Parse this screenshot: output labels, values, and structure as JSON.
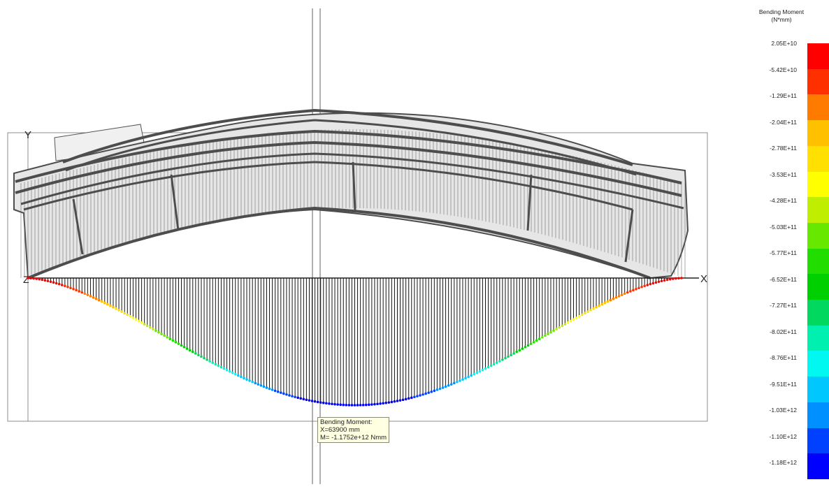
{
  "viewer": {
    "axis_labels": {
      "y": "Y",
      "x": "X",
      "z": "Z"
    }
  },
  "tooltip": {
    "title": "Bending Moment:",
    "x_line": "X=63900 mm",
    "m_line": "M= -1.1752e+12 Nmm"
  },
  "legend": {
    "title_line1": "Bending Moment",
    "title_line2": "(N*mm)",
    "values": [
      "2.05E+10",
      "-5.42E+10",
      "-1.29E+11",
      "-2.04E+11",
      "-2.78E+11",
      "-3.53E+11",
      "-4.28E+11",
      "-5.03E+11",
      "-5.77E+11",
      "-6.52E+11",
      "-7.27E+11",
      "-8.02E+11",
      "-8.76E+11",
      "-9.51E+11",
      "-1.03E+12",
      "-1.10E+12",
      "-1.18E+12"
    ],
    "colors": [
      "#ff0000",
      "#ff3000",
      "#ff7b00",
      "#ffc000",
      "#ffe000",
      "#ffff00",
      "#bfee00",
      "#66e800",
      "#22dd00",
      "#00d000",
      "#00d860",
      "#00f0b0",
      "#00f8f0",
      "#00c8ff",
      "#0090ff",
      "#0040ff",
      "#0000ff"
    ]
  },
  "chart_data": {
    "type": "line",
    "quantity": "Bending Moment",
    "unit": "N*mm",
    "x_unit": "mm",
    "moment_range": [
      -1180000000000.0,
      20500000000.0
    ],
    "probe": {
      "x": 63900,
      "m": -1175200000000.0
    }
  }
}
